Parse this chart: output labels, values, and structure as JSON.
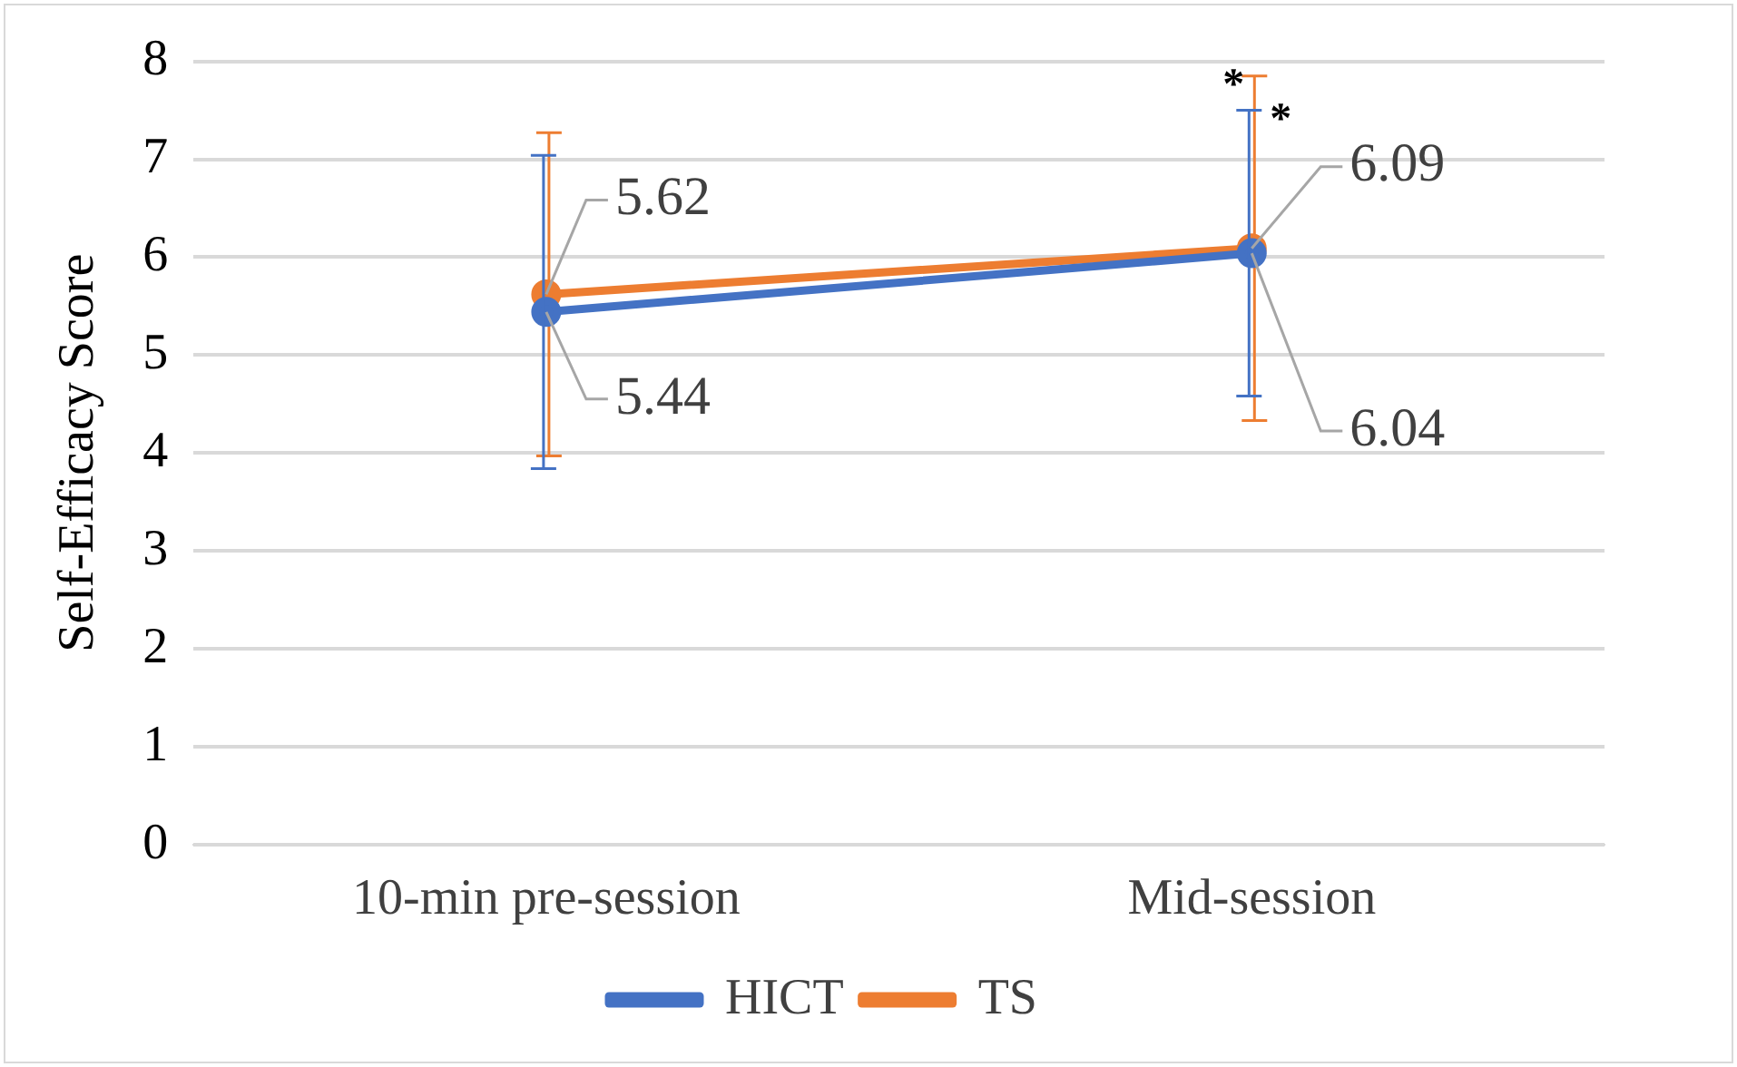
{
  "chart_data": {
    "type": "line",
    "ylabel": "Self-Efficacy Score",
    "categories": [
      "10-min pre-session",
      "Mid-session"
    ],
    "series": [
      {
        "name": "HICT",
        "color": "#4472c4",
        "values": [
          5.44,
          6.04
        ],
        "errors": [
          1.6,
          1.46
        ]
      },
      {
        "name": "TS",
        "color": "#ed7d31",
        "values": [
          5.62,
          6.09
        ],
        "errors": [
          1.65,
          1.76
        ]
      }
    ],
    "ylim": [
      0,
      8
    ],
    "yticks": [
      0,
      1,
      2,
      3,
      4,
      5,
      6,
      7,
      8
    ],
    "grid": "y",
    "legend": "bottom",
    "marker": "circle",
    "line_style": "solid",
    "data_labels": true,
    "annotations": [
      {
        "text": "*",
        "x": "Mid-session",
        "y": 7.85
      },
      {
        "text": "*",
        "x": "Mid-session",
        "y": 7.5
      }
    ]
  }
}
